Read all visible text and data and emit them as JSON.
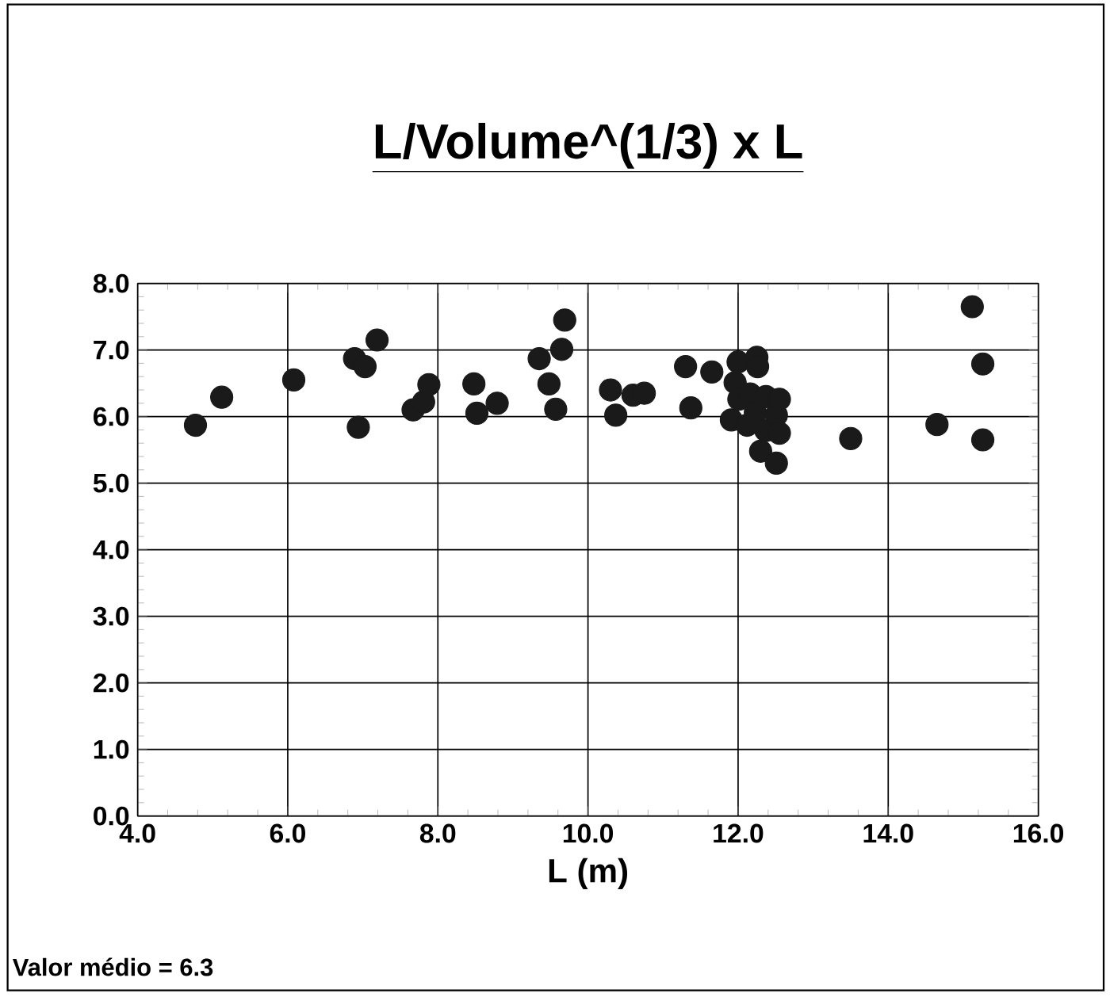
{
  "chart_data": {
    "type": "scatter",
    "title": "L/Volume^(1/3) x L",
    "xlabel": "L (m)",
    "annotations": [
      "Valor médio = 6.3"
    ],
    "x": [
      4.77,
      5.12,
      6.08,
      6.89,
      6.94,
      7.03,
      7.19,
      7.67,
      7.81,
      7.88,
      8.48,
      8.52,
      8.79,
      9.35,
      9.48,
      9.57,
      9.65,
      9.69,
      10.3,
      10.37,
      10.5,
      10.6,
      10.75,
      11.3,
      11.37,
      11.65,
      11.91,
      11.96,
      12.0,
      12.01,
      12.12,
      12.16,
      12.23,
      12.25,
      12.26,
      12.3,
      12.37,
      12.37,
      12.51,
      12.51,
      12.55,
      12.55,
      13.5,
      14.65,
      15.12,
      15.26,
      15.26
    ],
    "values": [
      5.87,
      6.29,
      6.55,
      6.87,
      5.84,
      6.75,
      7.15,
      6.1,
      6.22,
      6.48,
      6.49,
      6.05,
      6.2,
      6.87,
      6.49,
      6.11,
      7.01,
      7.45,
      6.4,
      6.02,
      null,
      6.32,
      6.35,
      6.75,
      6.13,
      6.67,
      5.95,
      6.51,
      6.82,
      6.26,
      5.87,
      6.34,
      6.06,
      6.89,
      6.75,
      5.48,
      6.3,
      5.79,
      6.02,
      5.3,
      6.26,
      5.75,
      5.67,
      5.88,
      7.65,
      6.79,
      5.65
    ],
    "color": "#1a1a1a",
    "grid": true,
    "xlim": [
      4,
      16
    ],
    "xticks": [
      {
        "value": 4,
        "label": "4.0"
      },
      {
        "value": 6,
        "label": "6.0"
      },
      {
        "value": 8,
        "label": "8.0"
      },
      {
        "value": 10,
        "label": "10.0"
      },
      {
        "value": 12,
        "label": "12.0"
      },
      {
        "value": 14,
        "label": "14.0"
      },
      {
        "value": 16,
        "label": "16.0"
      }
    ],
    "ylim": [
      0,
      8
    ],
    "yticks": [
      {
        "value": 0,
        "label": "0.0"
      },
      {
        "value": 1,
        "label": "1.0"
      },
      {
        "value": 2,
        "label": "2.0"
      },
      {
        "value": 3,
        "label": "3.0"
      },
      {
        "value": 4,
        "label": "4.0"
      },
      {
        "value": 5,
        "label": "5.0"
      },
      {
        "value": 6,
        "label": "6.0"
      },
      {
        "value": 7,
        "label": "7.0"
      },
      {
        "value": 8,
        "label": "8.0"
      }
    ]
  }
}
